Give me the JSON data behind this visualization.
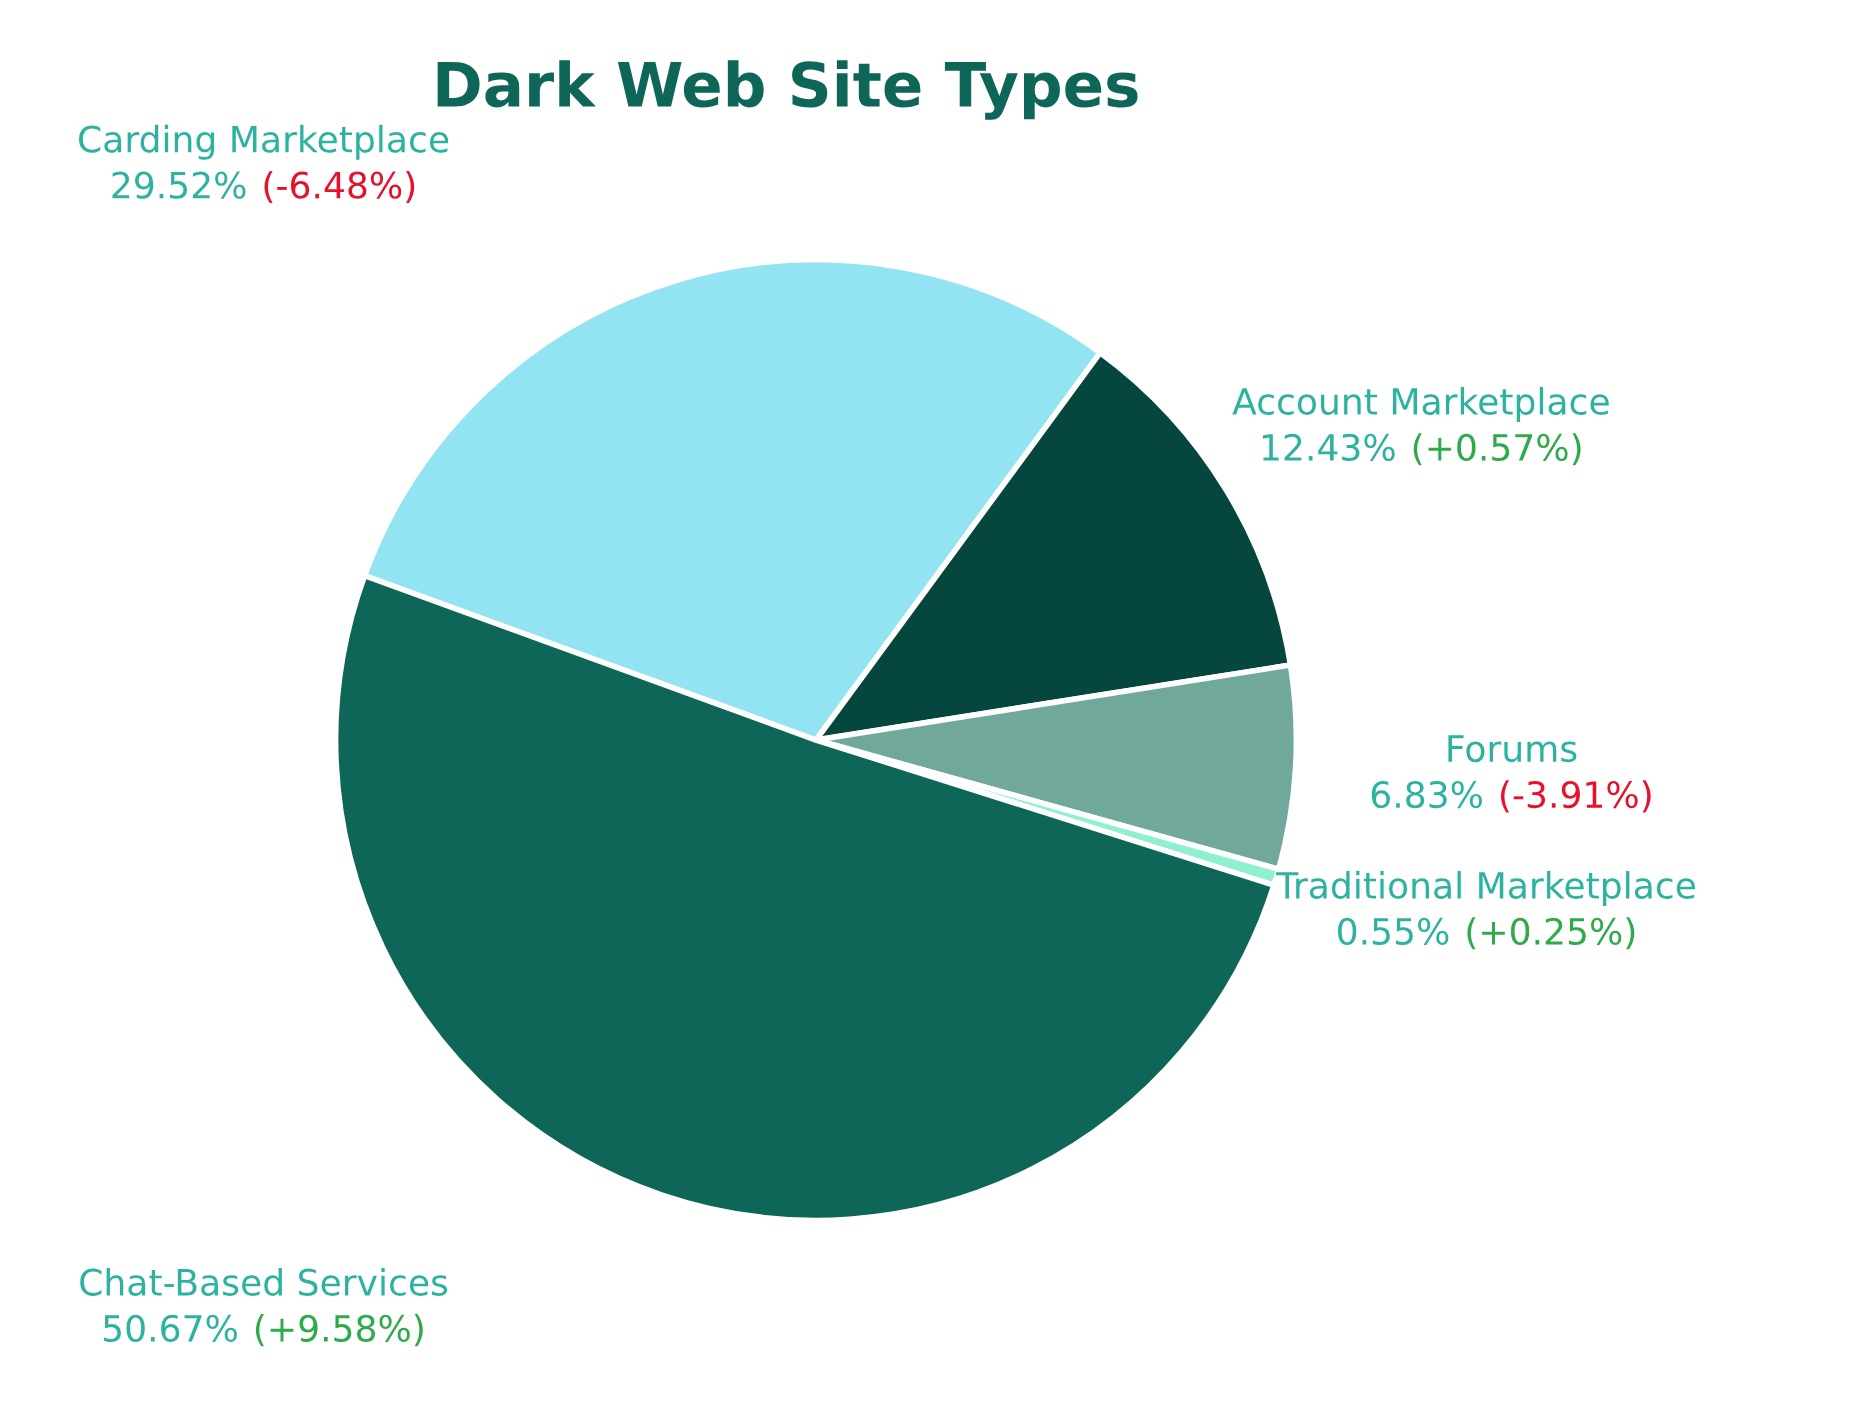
{
  "chart_data": {
    "type": "pie",
    "title": "Dark Web Site Types",
    "categories": [
      "Carding Marketplace",
      "Account Marketplace",
      "Forums",
      "Traditional Marketplace",
      "Chat-Based Services"
    ],
    "values": [
      29.52,
      12.43,
      6.83,
      0.55,
      50.67
    ],
    "colors": [
      "#93e4f2",
      "#05463f",
      "#70a89b",
      "#8ef0cf",
      "#0d6657"
    ],
    "value_labels": [
      "29.52%",
      "12.43%",
      "6.83%",
      "0.55%",
      "50.67%"
    ],
    "annotations": [
      "(-6.48%)",
      "(+0.57%)",
      "(-3.91%)",
      "(+0.25%)",
      "(+9.58%)"
    ]
  }
}
